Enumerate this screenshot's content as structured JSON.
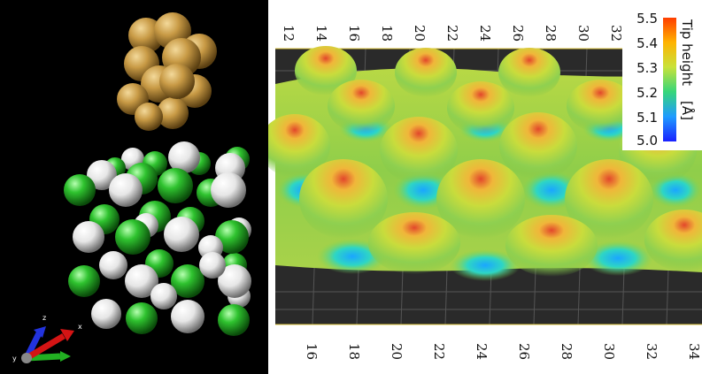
{
  "figure": {
    "left_panel": {
      "axes_labels": [
        "z",
        "y",
        "x"
      ],
      "colors": {
        "tip": "#c89a45",
        "green_atom": "#2fc32f",
        "white_atom": "#e6e6e6",
        "background": "#000000"
      }
    },
    "right_panel": {
      "top_axis_ticks": [
        "12",
        "14",
        "16",
        "18",
        "20",
        "22",
        "24",
        "26",
        "28",
        "30",
        "32"
      ],
      "bottom_axis_ticks": [
        "16",
        "18",
        "20",
        "22",
        "24",
        "26",
        "28",
        "30",
        "32",
        "34"
      ],
      "colorbar": {
        "label": "Tip height",
        "unit": "[Å]",
        "ticks": [
          "5.5",
          "5.4",
          "5.3",
          "5.2",
          "5.1",
          "5.0"
        ],
        "colors": [
          "#ff3d00",
          "#ffb300",
          "#c8e23a",
          "#36d67a",
          "#1f9bff",
          "#1a22ff"
        ]
      }
    }
  }
}
